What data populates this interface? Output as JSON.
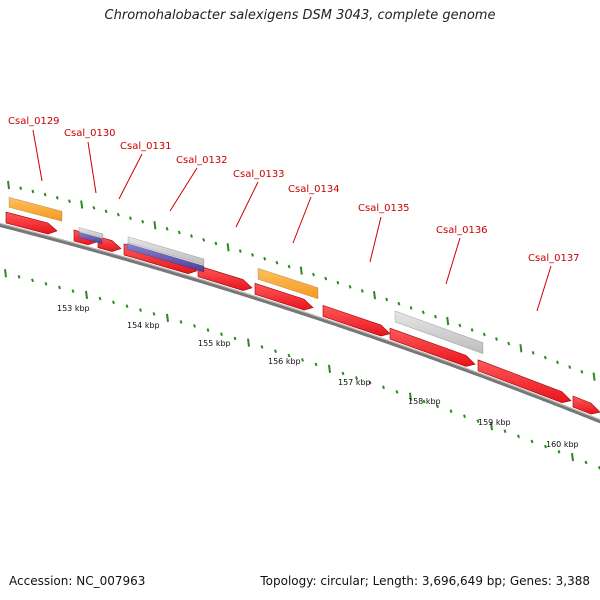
{
  "title": "Chromohalobacter salexigens DSM 3043, complete genome",
  "footer": {
    "accession": "Accession: NC_007963",
    "summary": "Topology: circular; Length: 3,696,649 bp; Genes: 3,388"
  },
  "colors": {
    "gene_arrow": "#e8141c",
    "cds_orange": "#f39a1c",
    "cds_gray": "#bdbdbd",
    "cds_purple": "#4a3f9a",
    "tick": "#2a8a1e",
    "backbone": "#777777",
    "label": "#cc0000"
  },
  "scale_labels": [
    "153 kbp",
    "154 kbp",
    "155 kbp",
    "156 kbp",
    "157 kbp",
    "158 kbp",
    "159 kbp",
    "160 kbp"
  ],
  "genes": [
    {
      "label": "Csal_0129"
    },
    {
      "label": "Csal_0130"
    },
    {
      "label": "Csal_0131"
    },
    {
      "label": "Csal_0132"
    },
    {
      "label": "Csal_0133"
    },
    {
      "label": "Csal_0134"
    },
    {
      "label": "Csal_0135"
    },
    {
      "label": "Csal_0136"
    },
    {
      "label": "Csal_0137"
    }
  ]
}
